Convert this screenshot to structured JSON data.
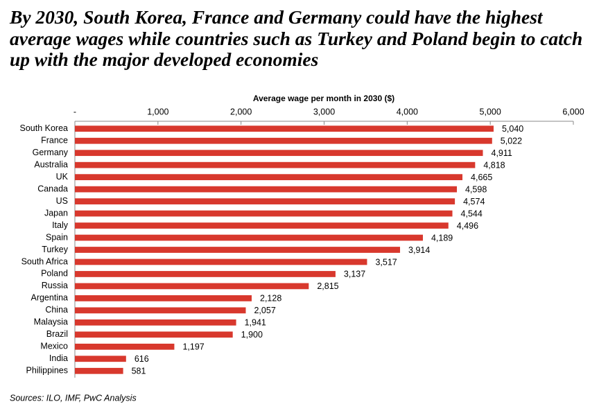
{
  "chart_data": {
    "type": "bar",
    "orientation": "horizontal",
    "title": "By 2030, South Korea, France and Germany could have the highest average wages while countries such as Turkey and Poland begin to catch up with the major developed economies",
    "x_label": "Average wage per month in 2030 ($)",
    "source": "Sources: ILO, IMF, PwC Analysis",
    "categories": [
      "South Korea",
      "France",
      "Germany",
      "Australia",
      "UK",
      "Canada",
      "US",
      "Japan",
      "Italy",
      "Spain",
      "Turkey",
      "South Africa",
      "Poland",
      "Russia",
      "Argentina",
      "China",
      "Malaysia",
      "Brazil",
      "Mexico",
      "India",
      "Philippines"
    ],
    "values": [
      5040,
      5022,
      4911,
      4818,
      4665,
      4598,
      4574,
      4544,
      4496,
      4189,
      3914,
      3517,
      3137,
      2815,
      2128,
      2057,
      1941,
      1900,
      1197,
      616,
      581
    ],
    "value_labels": [
      "5,040",
      "5,022",
      "4,911",
      "4,818",
      "4,665",
      "4,598",
      "4,574",
      "4,544",
      "4,496",
      "4,189",
      "3,914",
      "3,517",
      "3,137",
      "2,815",
      "2,128",
      "2,057",
      "1,941",
      "1,900",
      "1,197",
      "616",
      "581"
    ],
    "color": "#d8382d",
    "xlim": [
      0,
      6000
    ],
    "xticks": [
      {
        "value": 0,
        "label": "-"
      },
      {
        "value": 1000,
        "label": "1,000"
      },
      {
        "value": 2000,
        "label": "2,000"
      },
      {
        "value": 3000,
        "label": "3,000"
      },
      {
        "value": 4000,
        "label": "4,000"
      },
      {
        "value": 5000,
        "label": "5,000"
      },
      {
        "value": 6000,
        "label": "6,000"
      }
    ],
    "grid": false
  }
}
